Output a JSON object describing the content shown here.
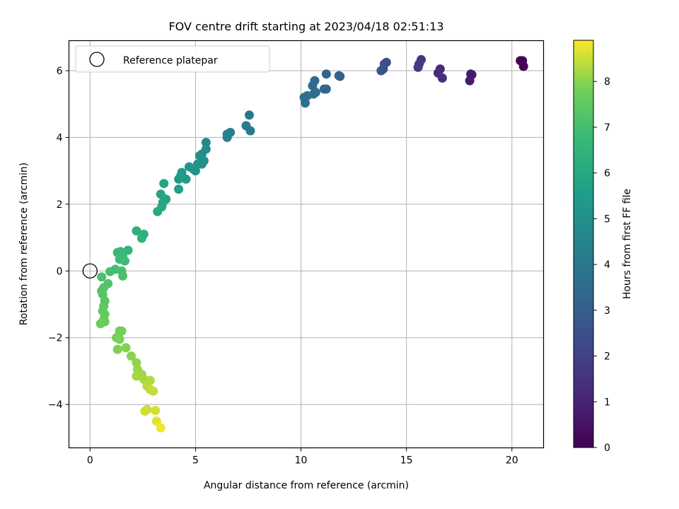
{
  "chart_data": {
    "type": "scatter",
    "title": "FOV centre drift starting at 2023/04/18 02:51:13",
    "xlabel": "Angular distance from reference (arcmin)",
    "ylabel": "Rotation from reference (arcmin)",
    "xlim": [
      -1.0,
      21.5
    ],
    "ylim": [
      -5.3,
      6.9
    ],
    "xticks": [
      0,
      5,
      10,
      15,
      20
    ],
    "yticks": [
      -4,
      -2,
      0,
      2,
      4,
      6
    ],
    "grid": true,
    "legend": {
      "placement": "top-left",
      "entries": [
        "Reference platepar"
      ]
    },
    "reference_point": {
      "x": 0,
      "y": 0,
      "label": "Reference platepar"
    },
    "colorbar": {
      "label": "Hours from first FF file",
      "range": [
        0,
        8.9
      ],
      "ticks": [
        0,
        1,
        2,
        3,
        4,
        5,
        6,
        7,
        8
      ],
      "colormap": "viridis"
    },
    "points": [
      {
        "x": 20.4,
        "y": 6.3,
        "c": 0.0
      },
      {
        "x": 20.5,
        "y": 6.3,
        "c": 0.05
      },
      {
        "x": 20.55,
        "y": 6.13,
        "c": 0.1
      },
      {
        "x": 18.05,
        "y": 5.9,
        "c": 0.7
      },
      {
        "x": 18.1,
        "y": 5.88,
        "c": 0.75
      },
      {
        "x": 18.0,
        "y": 5.7,
        "c": 0.8
      },
      {
        "x": 16.6,
        "y": 6.05,
        "c": 1.25
      },
      {
        "x": 16.5,
        "y": 5.93,
        "c": 1.3
      },
      {
        "x": 16.7,
        "y": 5.78,
        "c": 1.35
      },
      {
        "x": 15.7,
        "y": 6.33,
        "c": 1.7
      },
      {
        "x": 15.6,
        "y": 6.2,
        "c": 1.8
      },
      {
        "x": 15.55,
        "y": 6.1,
        "c": 1.85
      },
      {
        "x": 14.05,
        "y": 6.25,
        "c": 2.4
      },
      {
        "x": 13.95,
        "y": 6.2,
        "c": 2.45
      },
      {
        "x": 13.9,
        "y": 6.05,
        "c": 2.55
      },
      {
        "x": 13.8,
        "y": 6.0,
        "c": 2.6
      },
      {
        "x": 11.85,
        "y": 5.83,
        "c": 3.0
      },
      {
        "x": 11.8,
        "y": 5.85,
        "c": 3.05
      },
      {
        "x": 11.2,
        "y": 5.9,
        "c": 3.15
      },
      {
        "x": 11.2,
        "y": 5.45,
        "c": 3.25
      },
      {
        "x": 11.1,
        "y": 5.45,
        "c": 3.3
      },
      {
        "x": 10.65,
        "y": 5.7,
        "c": 3.4
      },
      {
        "x": 10.55,
        "y": 5.55,
        "c": 3.45
      },
      {
        "x": 10.7,
        "y": 5.35,
        "c": 3.5
      },
      {
        "x": 10.6,
        "y": 5.3,
        "c": 3.55
      },
      {
        "x": 10.3,
        "y": 5.25,
        "c": 3.6
      },
      {
        "x": 10.15,
        "y": 5.2,
        "c": 3.65
      },
      {
        "x": 10.2,
        "y": 5.03,
        "c": 3.7
      },
      {
        "x": 7.55,
        "y": 4.67,
        "c": 4.0
      },
      {
        "x": 7.4,
        "y": 4.35,
        "c": 4.05
      },
      {
        "x": 7.6,
        "y": 4.2,
        "c": 4.1
      },
      {
        "x": 6.65,
        "y": 4.15,
        "c": 4.3
      },
      {
        "x": 6.5,
        "y": 4.1,
        "c": 4.35
      },
      {
        "x": 6.5,
        "y": 4.0,
        "c": 4.4
      },
      {
        "x": 5.5,
        "y": 3.85,
        "c": 4.8
      },
      {
        "x": 5.5,
        "y": 3.65,
        "c": 4.85
      },
      {
        "x": 5.3,
        "y": 3.5,
        "c": 4.9
      },
      {
        "x": 5.2,
        "y": 3.45,
        "c": 4.95
      },
      {
        "x": 5.4,
        "y": 3.3,
        "c": 5.0
      },
      {
        "x": 5.3,
        "y": 3.2,
        "c": 5.05
      },
      {
        "x": 5.1,
        "y": 3.2,
        "c": 5.1
      },
      {
        "x": 4.9,
        "y": 3.05,
        "c": 5.15
      },
      {
        "x": 5.0,
        "y": 3.0,
        "c": 5.2
      },
      {
        "x": 4.7,
        "y": 3.12,
        "c": 5.25
      },
      {
        "x": 4.35,
        "y": 2.95,
        "c": 5.35
      },
      {
        "x": 4.3,
        "y": 2.85,
        "c": 5.4
      },
      {
        "x": 4.2,
        "y": 2.75,
        "c": 5.45
      },
      {
        "x": 4.55,
        "y": 2.75,
        "c": 5.5
      },
      {
        "x": 4.2,
        "y": 2.45,
        "c": 5.55
      },
      {
        "x": 3.5,
        "y": 2.62,
        "c": 5.75
      },
      {
        "x": 3.35,
        "y": 2.3,
        "c": 5.8
      },
      {
        "x": 3.6,
        "y": 2.15,
        "c": 5.85
      },
      {
        "x": 3.45,
        "y": 2.05,
        "c": 5.9
      },
      {
        "x": 3.4,
        "y": 1.92,
        "c": 5.95
      },
      {
        "x": 3.2,
        "y": 1.78,
        "c": 6.0
      },
      {
        "x": 2.2,
        "y": 1.2,
        "c": 6.35
      },
      {
        "x": 2.55,
        "y": 1.1,
        "c": 6.4
      },
      {
        "x": 2.45,
        "y": 0.98,
        "c": 6.45
      },
      {
        "x": 1.8,
        "y": 0.62,
        "c": 6.6
      },
      {
        "x": 1.45,
        "y": 0.58,
        "c": 6.65
      },
      {
        "x": 1.3,
        "y": 0.55,
        "c": 6.7
      },
      {
        "x": 1.55,
        "y": 0.45,
        "c": 6.75
      },
      {
        "x": 1.4,
        "y": 0.35,
        "c": 6.8
      },
      {
        "x": 1.65,
        "y": 0.3,
        "c": 6.85
      },
      {
        "x": 1.2,
        "y": 0.05,
        "c": 6.95
      },
      {
        "x": 0.95,
        "y": -0.02,
        "c": 7.0
      },
      {
        "x": 1.5,
        "y": 0.0,
        "c": 7.05
      },
      {
        "x": 1.55,
        "y": -0.15,
        "c": 7.1
      },
      {
        "x": 0.55,
        "y": -0.18,
        "c": 7.15
      },
      {
        "x": 0.85,
        "y": -0.38,
        "c": 7.2
      },
      {
        "x": 0.65,
        "y": -0.5,
        "c": 7.25
      },
      {
        "x": 0.55,
        "y": -0.6,
        "c": 7.3
      },
      {
        "x": 0.6,
        "y": -0.7,
        "c": 7.35
      },
      {
        "x": 0.7,
        "y": -0.9,
        "c": 7.4
      },
      {
        "x": 0.65,
        "y": -1.05,
        "c": 7.45
      },
      {
        "x": 0.6,
        "y": -1.2,
        "c": 7.5
      },
      {
        "x": 0.7,
        "y": -1.3,
        "c": 7.55
      },
      {
        "x": 0.65,
        "y": -1.45,
        "c": 7.6
      },
      {
        "x": 0.7,
        "y": -1.52,
        "c": 7.65
      },
      {
        "x": 0.5,
        "y": -1.58,
        "c": 7.7
      },
      {
        "x": 1.4,
        "y": -1.8,
        "c": 7.8
      },
      {
        "x": 1.5,
        "y": -1.8,
        "c": 7.82
      },
      {
        "x": 1.25,
        "y": -2.0,
        "c": 7.85
      },
      {
        "x": 1.4,
        "y": -2.05,
        "c": 7.87
      },
      {
        "x": 1.3,
        "y": -2.35,
        "c": 7.9
      },
      {
        "x": 1.7,
        "y": -2.3,
        "c": 7.95
      },
      {
        "x": 1.95,
        "y": -2.55,
        "c": 8.0
      },
      {
        "x": 2.2,
        "y": -2.75,
        "c": 8.05
      },
      {
        "x": 2.25,
        "y": -2.95,
        "c": 8.1
      },
      {
        "x": 2.45,
        "y": -3.1,
        "c": 8.15
      },
      {
        "x": 2.2,
        "y": -3.15,
        "c": 8.2
      },
      {
        "x": 2.55,
        "y": -3.25,
        "c": 8.25
      },
      {
        "x": 2.85,
        "y": -3.28,
        "c": 8.3
      },
      {
        "x": 2.7,
        "y": -3.45,
        "c": 8.35
      },
      {
        "x": 2.85,
        "y": -3.55,
        "c": 8.4
      },
      {
        "x": 3.0,
        "y": -3.6,
        "c": 8.45
      },
      {
        "x": 2.7,
        "y": -4.15,
        "c": 8.5
      },
      {
        "x": 2.6,
        "y": -4.2,
        "c": 8.55
      },
      {
        "x": 3.1,
        "y": -4.18,
        "c": 8.6
      },
      {
        "x": 3.15,
        "y": -4.5,
        "c": 8.7
      },
      {
        "x": 3.35,
        "y": -4.7,
        "c": 8.8
      }
    ]
  }
}
